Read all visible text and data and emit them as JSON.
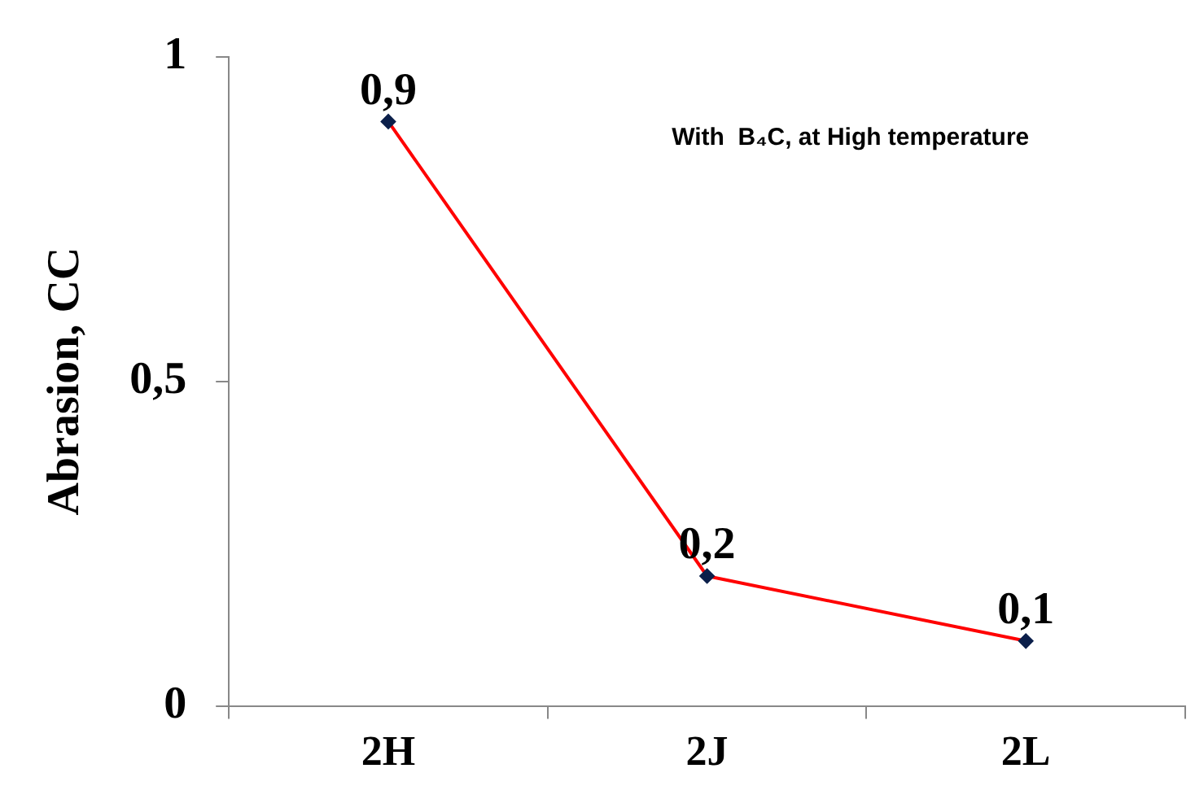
{
  "chart_data": {
    "type": "line",
    "ylabel": "Abrasion, CC",
    "annotations": [
      "With  B₄C, at High temperature"
    ],
    "categories": [
      "2H",
      "2J",
      "2L"
    ],
    "series": [
      {
        "color": "#ff0000",
        "values": [
          0.9,
          0.2,
          0.1
        ],
        "value_labels": [
          "0,9",
          "0,2",
          "0,1"
        ]
      }
    ],
    "ylim": [
      0,
      1
    ],
    "yticks": [
      {
        "value": 0,
        "label": "0"
      },
      {
        "value": 0.5,
        "label": "0,5"
      },
      {
        "value": 1,
        "label": "1"
      }
    ],
    "grid": false,
    "legend": false,
    "marker": "diamond",
    "line_style": "solid"
  }
}
